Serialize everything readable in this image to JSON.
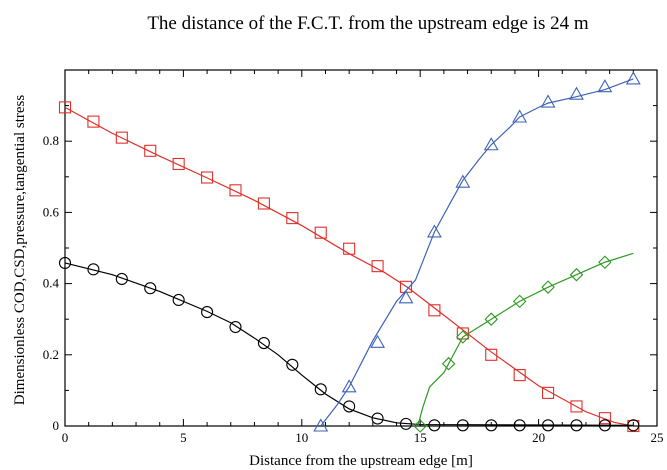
{
  "chart_data": {
    "type": "line",
    "title": "The distance of the F.C.T. from the upstream edge is 24 m",
    "xlabel": "Distance from the upstream edge [m]",
    "ylabel": "Dimensionless COD,CSD,pressure,tangential stress",
    "xlim": [
      0,
      25
    ],
    "ylim": [
      0,
      1.0
    ],
    "xticks": [
      0,
      5,
      10,
      15,
      20,
      25
    ],
    "yticks": [
      0,
      0.2,
      0.4,
      0.6,
      0.8
    ],
    "xtick_labels": [
      "0",
      "5",
      "10",
      "15",
      "20",
      "25"
    ],
    "ytick_labels": [
      "0",
      "0.2",
      "0.4",
      "0.6",
      "0.8"
    ],
    "grid": false,
    "legend": "none",
    "series": [
      {
        "color": "#e0302a",
        "marker": "square",
        "line": [
          [
            0,
            0.895
          ],
          [
            2,
            0.822
          ],
          [
            4,
            0.758
          ],
          [
            6,
            0.697
          ],
          [
            8,
            0.634
          ],
          [
            10,
            0.563
          ],
          [
            12,
            0.484
          ],
          [
            13.5,
            0.431
          ],
          [
            14.5,
            0.388
          ],
          [
            16,
            0.311
          ],
          [
            18,
            0.208
          ],
          [
            20,
            0.113
          ],
          [
            22,
            0.04
          ],
          [
            23.2,
            0.01
          ],
          [
            24,
            0.0
          ]
        ],
        "points": [
          [
            0,
            0.895
          ],
          [
            1.2,
            0.855
          ],
          [
            2.4,
            0.81
          ],
          [
            3.6,
            0.773
          ],
          [
            4.8,
            0.736
          ],
          [
            6,
            0.698
          ],
          [
            7.2,
            0.662
          ],
          [
            8.4,
            0.625
          ],
          [
            9.6,
            0.584
          ],
          [
            10.8,
            0.543
          ],
          [
            12,
            0.498
          ],
          [
            13.2,
            0.449
          ],
          [
            14.4,
            0.391
          ],
          [
            15.6,
            0.325
          ],
          [
            16.8,
            0.26
          ],
          [
            18,
            0.2
          ],
          [
            19.2,
            0.143
          ],
          [
            20.4,
            0.093
          ],
          [
            21.6,
            0.055
          ],
          [
            22.8,
            0.022
          ],
          [
            24,
            0.0
          ]
        ]
      },
      {
        "color": "#000000",
        "marker": "circle",
        "line": [
          [
            0,
            0.458
          ],
          [
            2,
            0.425
          ],
          [
            4,
            0.378
          ],
          [
            6,
            0.322
          ],
          [
            7,
            0.29
          ],
          [
            8,
            0.247
          ],
          [
            9,
            0.2
          ],
          [
            10,
            0.143
          ],
          [
            11,
            0.09
          ],
          [
            12,
            0.048
          ],
          [
            13,
            0.023
          ],
          [
            14,
            0.009
          ],
          [
            15,
            0.004
          ],
          [
            24,
            0.002
          ]
        ],
        "points": [
          [
            0,
            0.458
          ],
          [
            1.2,
            0.44
          ],
          [
            2.4,
            0.413
          ],
          [
            3.6,
            0.387
          ],
          [
            4.8,
            0.354
          ],
          [
            6,
            0.32
          ],
          [
            7.2,
            0.278
          ],
          [
            8.4,
            0.233
          ],
          [
            9.6,
            0.172
          ],
          [
            10.8,
            0.103
          ],
          [
            12,
            0.055
          ],
          [
            13.2,
            0.021
          ],
          [
            14.4,
            0.006
          ],
          [
            15.6,
            0.002
          ],
          [
            16.8,
            0.002
          ],
          [
            18,
            0.002
          ],
          [
            19.2,
            0.002
          ],
          [
            20.4,
            0.002
          ],
          [
            21.6,
            0.002
          ],
          [
            22.8,
            0.002
          ],
          [
            24,
            0.002
          ]
        ]
      },
      {
        "color": "#3f63b8",
        "marker": "triangle",
        "line": [
          [
            10.8,
            0.0
          ],
          [
            11.5,
            0.06
          ],
          [
            12,
            0.11
          ],
          [
            13,
            0.24
          ],
          [
            14,
            0.35
          ],
          [
            14.8,
            0.41
          ],
          [
            15.6,
            0.545
          ],
          [
            16.3,
            0.63
          ],
          [
            16.8,
            0.69
          ],
          [
            17.5,
            0.75
          ],
          [
            18,
            0.79
          ],
          [
            18.8,
            0.84
          ],
          [
            19.2,
            0.868
          ],
          [
            20,
            0.895
          ],
          [
            20.4,
            0.907
          ],
          [
            21.6,
            0.925
          ],
          [
            22.8,
            0.945
          ],
          [
            24,
            0.975
          ]
        ],
        "points": [
          [
            10.8,
            0.0
          ],
          [
            12,
            0.11
          ],
          [
            13.2,
            0.235
          ],
          [
            14.4,
            0.36
          ],
          [
            15.6,
            0.545
          ],
          [
            16.8,
            0.685
          ],
          [
            18,
            0.79
          ],
          [
            19.2,
            0.868
          ],
          [
            20.4,
            0.91
          ],
          [
            21.6,
            0.932
          ],
          [
            22.8,
            0.953
          ],
          [
            24,
            0.975
          ]
        ]
      },
      {
        "color": "#2d9a22",
        "marker": "diamond",
        "line": [
          [
            14.9,
            0.0
          ],
          [
            15.1,
            0.05
          ],
          [
            15.4,
            0.11
          ],
          [
            16,
            0.15
          ],
          [
            16.8,
            0.25
          ],
          [
            18,
            0.3
          ],
          [
            19.2,
            0.35
          ],
          [
            20.4,
            0.39
          ],
          [
            21.6,
            0.425
          ],
          [
            22.8,
            0.46
          ],
          [
            24,
            0.485
          ]
        ],
        "points": [
          [
            15,
            0.0
          ],
          [
            16.2,
            0.175
          ],
          [
            16.8,
            0.25
          ],
          [
            18,
            0.3
          ],
          [
            19.2,
            0.35
          ],
          [
            20.4,
            0.39
          ],
          [
            21.6,
            0.425
          ],
          [
            22.8,
            0.46
          ]
        ]
      }
    ]
  }
}
